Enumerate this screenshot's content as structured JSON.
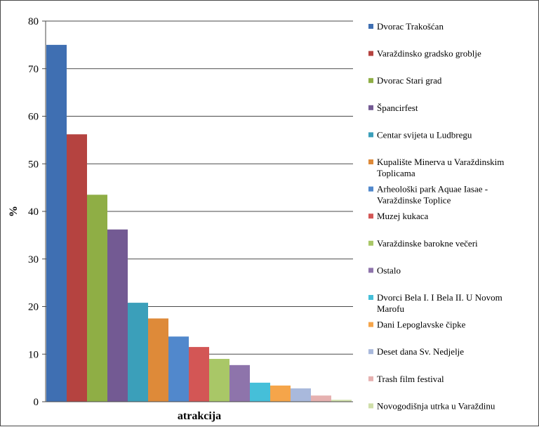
{
  "chart_data": {
    "type": "bar",
    "title": "",
    "xlabel": "atrakcija",
    "ylabel": "%",
    "ylim": [
      0,
      80
    ],
    "yticks": [
      0,
      10,
      20,
      30,
      40,
      50,
      60,
      70,
      80
    ],
    "grid": true,
    "legend_position": "right",
    "series": [
      {
        "name": [
          "Dvorac Trakošćan"
        ],
        "value": 75,
        "color": "#3f6fb2"
      },
      {
        "name": [
          "Varaždinsko gradsko groblje"
        ],
        "value": 56.2,
        "color": "#b54340"
      },
      {
        "name": [
          "Dvorac Stari grad"
        ],
        "value": 43.5,
        "color": "#8fae45"
      },
      {
        "name": [
          "Špancirfest"
        ],
        "value": 36.2,
        "color": "#735a93"
      },
      {
        "name": [
          "Centar svijeta u Ludbregu"
        ],
        "value": 20.8,
        "color": "#3b9fba"
      },
      {
        "name": [
          "Kupalište Minerva u Varaždinskim",
          "Toplicama"
        ],
        "value": 17.5,
        "color": "#de8a39"
      },
      {
        "name": [
          "Arheološki park Aquae Iasae -",
          "Varaždinske Toplice"
        ],
        "value": 13.7,
        "color": "#5188cc"
      },
      {
        "name": [
          "Muzej kukaca"
        ],
        "value": 11.5,
        "color": "#d35655"
      },
      {
        "name": [
          "Varaždinske barokne večeri"
        ],
        "value": 9.0,
        "color": "#a9c767"
      },
      {
        "name": [
          "Ostalo"
        ],
        "value": 7.7,
        "color": "#8e74ab"
      },
      {
        "name": [
          "Dvorci Bela I. I Bela II. U Novom",
          "Marofu"
        ],
        "value": 4.0,
        "color": "#45bfd9"
      },
      {
        "name": [
          "Dani Lepoglavske čipke"
        ],
        "value": 3.4,
        "color": "#f5a54a"
      },
      {
        "name": [
          "Deset dana Sv. Nedjelje"
        ],
        "value": 2.8,
        "color": "#a9b9dc"
      },
      {
        "name": [
          "Trash film festival"
        ],
        "value": 1.3,
        "color": "#e6b1b0"
      },
      {
        "name": [
          "Novogodišnja utrka u Varaždinu"
        ],
        "value": 0.4,
        "color": "#cfdfa9"
      }
    ]
  }
}
